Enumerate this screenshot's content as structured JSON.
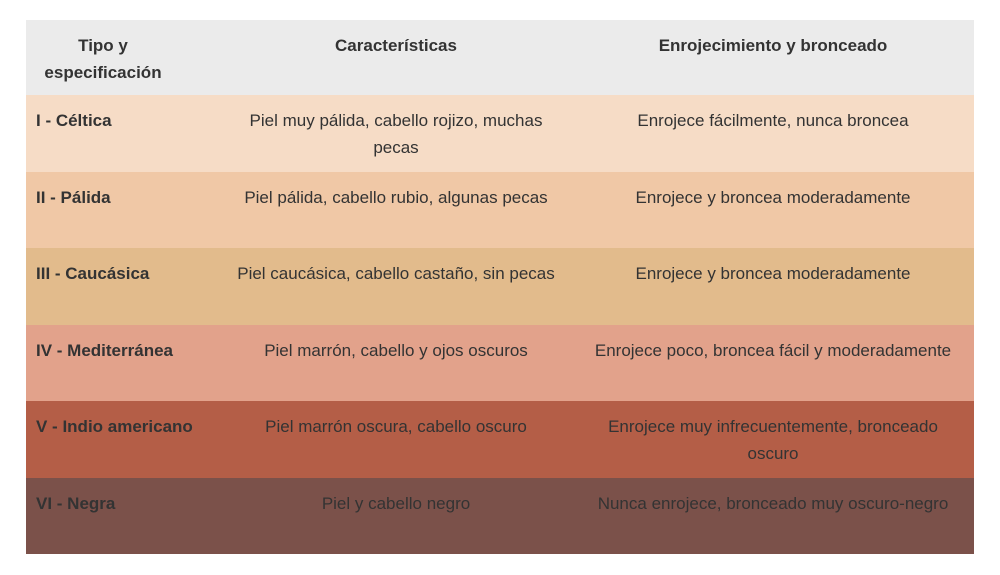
{
  "table": {
    "header": [
      "Tipo y especificación",
      "Características",
      "Enrojecimiento y bronceado"
    ],
    "rows": [
      [
        "I - Céltica",
        "Piel muy pálida, cabello rojizo, muchas pecas",
        "Enrojece fácilmente, nunca broncea"
      ],
      [
        "II - Pálida",
        "Piel pálida, cabello rubio, algunas pecas",
        "Enrojece y broncea moderadamente"
      ],
      [
        "III - Caucásica",
        "Piel caucásica, cabello castaño, sin pecas",
        "Enrojece y broncea moderadamente"
      ],
      [
        "IV - Mediterránea",
        "Piel marrón, cabello y ojos oscuros",
        "Enrojece poco, broncea fácil y moderadamente"
      ],
      [
        "V - Indio americano",
        "Piel marrón oscura, cabello oscuro",
        "Enrojece muy infrecuentemente, bronceado oscuro"
      ],
      [
        "VI - Negra",
        "Piel y cabello negro",
        "Nunca enrojece, bronceado muy oscuro-negro"
      ]
    ]
  }
}
